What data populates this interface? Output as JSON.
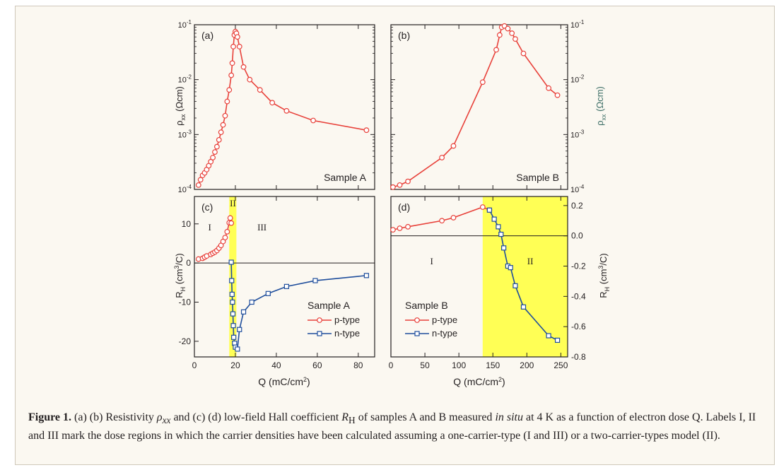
{
  "caption": {
    "label": "Figure 1.",
    "part1": " (a) (b) Resistivity ",
    "sym_rho": "ρ",
    "sym_rho_sub": "xx",
    "part2": " and (c) (d) low-field Hall coefficient ",
    "sym_R": "R",
    "sym_R_sub": "H",
    "part3": " of samples A and B measured ",
    "in_situ": "in situ",
    "part4": " at 4 K as a function of electron dose Q. Labels I, II and III mark the dose regions in which the carrier densities have been calculated assuming a one-carrier-type (I and III) or a two-carrier-types model (II)."
  },
  "colors": {
    "p_type": "#e8413a",
    "n_type": "#1f4e9c",
    "highlight": "#ffff55",
    "axis": "#231f20",
    "right_ylabel": "#3c6e66"
  },
  "chart_data": [
    {
      "panel": "(a)",
      "type": "line",
      "xlim": [
        0,
        88
      ],
      "ylim": [
        0.0001,
        0.1
      ],
      "yscale": "log",
      "ylabel": "ρxx (Ωcm)",
      "annotation": "Sample A",
      "yticks": [
        "10⁻⁴",
        "10⁻³",
        "10⁻²",
        "10⁻¹"
      ],
      "series": [
        {
          "x": [
            2,
            3,
            4,
            5,
            6,
            7,
            8,
            9,
            10,
            11,
            12,
            13,
            14,
            15,
            16,
            17,
            18,
            18.5,
            19,
            19.5,
            20,
            20.5,
            21,
            22,
            24,
            27,
            32,
            38,
            45,
            58,
            84
          ],
          "y": [
            0.00012,
            0.00015,
            0.00018,
            0.0002,
            0.00023,
            0.00027,
            0.00032,
            0.00038,
            0.00048,
            0.0006,
            0.0008,
            0.0011,
            0.0015,
            0.0022,
            0.004,
            0.0065,
            0.012,
            0.02,
            0.04,
            0.065,
            0.075,
            0.07,
            0.06,
            0.04,
            0.017,
            0.01,
            0.0065,
            0.0038,
            0.0027,
            0.0018,
            0.0012
          ]
        }
      ]
    },
    {
      "panel": "(b)",
      "type": "line",
      "xlim": [
        0,
        260
      ],
      "ylim": [
        0.0001,
        0.1
      ],
      "yscale": "log",
      "ylabel": "ρxx (Ωcm)",
      "annotation": "Sample B",
      "yticks": [
        "10⁻⁴",
        "10⁻³",
        "10⁻²",
        "10⁻¹"
      ],
      "series": [
        {
          "x": [
            3,
            13,
            25,
            75,
            92,
            135,
            155,
            160,
            163,
            167,
            172,
            178,
            183,
            195,
            232,
            245
          ],
          "y": [
            0.00011,
            0.00012,
            0.00014,
            0.00038,
            0.00062,
            0.009,
            0.035,
            0.065,
            0.09,
            0.095,
            0.085,
            0.07,
            0.055,
            0.03,
            0.007,
            0.0052
          ]
        }
      ]
    },
    {
      "panel": "(c)",
      "type": "line",
      "xlim": [
        0,
        88
      ],
      "ylim": [
        -24,
        17
      ],
      "xlabel": "Q (mC/cm²)",
      "ylabel": "RH (cm³/C)",
      "xticks": [
        "0",
        "20",
        "40",
        "60",
        "80"
      ],
      "yticks": [
        "-20",
        "-10",
        "0",
        "10"
      ],
      "highlight": [
        17,
        20.5
      ],
      "region_labels": [
        "I",
        "II",
        "III"
      ],
      "legend_title": "Sample A",
      "series": [
        {
          "name": "p-type",
          "x": [
            2,
            4,
            5,
            6,
            8,
            9,
            10,
            11,
            12,
            13,
            14,
            15,
            16,
            17,
            17.5,
            18
          ],
          "y": [
            1,
            1.2,
            1.5,
            1.8,
            2.2,
            2.5,
            2.8,
            3.2,
            3.8,
            4.5,
            5.5,
            6.5,
            8,
            10.3,
            11.5,
            10.2
          ]
        },
        {
          "name": "n-type",
          "x": [
            18,
            18.2,
            18.4,
            18.6,
            18.8,
            19,
            19.2,
            19.6,
            20,
            21,
            22,
            24,
            28,
            36,
            45,
            59,
            84
          ],
          "y": [
            0.2,
            -4.5,
            -8,
            -10,
            -13,
            -16,
            -19,
            -20.5,
            -21.5,
            -22,
            -17,
            -12.5,
            -10,
            -7.8,
            -6,
            -4.5,
            -3.2
          ]
        }
      ]
    },
    {
      "panel": "(d)",
      "type": "line",
      "xlim": [
        0,
        260
      ],
      "ylim": [
        -0.8,
        0.26
      ],
      "xlabel": "Q (mC/cm²)",
      "ylabel": "RH (cm³/C)",
      "xticks": [
        "0",
        "50",
        "100",
        "150",
        "200",
        "250"
      ],
      "yticks": [
        "0.2",
        "0.0",
        "-0.2",
        "-0.4",
        "-0.6",
        "-0.8"
      ],
      "highlight": [
        135,
        260
      ],
      "region_labels": [
        "I",
        "II"
      ],
      "legend_title": "Sample B",
      "series": [
        {
          "name": "p-type",
          "x": [
            3,
            13,
            25,
            75,
            92,
            135,
            145
          ],
          "y": [
            0.04,
            0.05,
            0.06,
            0.1,
            0.12,
            0.19,
            0.17
          ]
        },
        {
          "name": "n-type",
          "x": [
            145,
            152,
            158,
            162,
            166,
            172,
            176,
            183,
            195,
            232,
            245
          ],
          "y": [
            0.17,
            0.11,
            0.06,
            0.01,
            -0.08,
            -0.2,
            -0.21,
            -0.33,
            -0.47,
            -0.66,
            -0.69
          ]
        }
      ]
    }
  ]
}
